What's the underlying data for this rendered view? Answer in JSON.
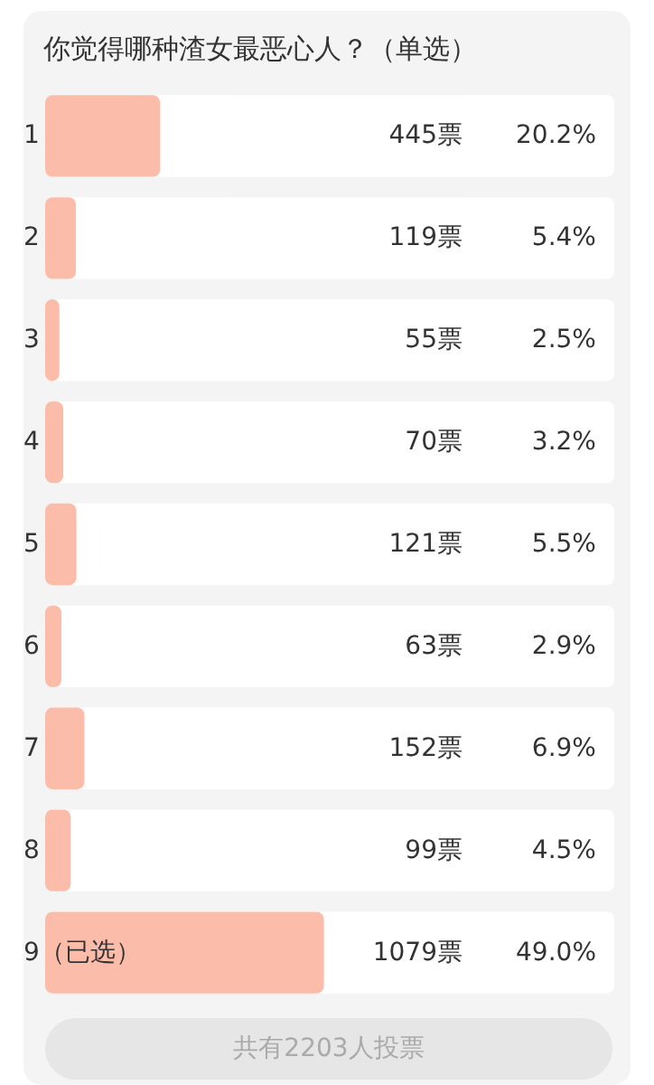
{
  "chart_data": {
    "type": "bar",
    "orientation": "horizontal",
    "title": "你觉得哪种渣女最恶心人？（单选）",
    "categories": [
      "1",
      "2",
      "3",
      "4",
      "5",
      "6",
      "7",
      "8",
      "9（已选）"
    ],
    "values": [
      445,
      119,
      55,
      70,
      121,
      63,
      152,
      99,
      1079
    ],
    "value_labels": [
      "445票",
      "119票",
      "55票",
      "70票",
      "121票",
      "63票",
      "152票",
      "99票",
      "1079票"
    ],
    "color": "#fbbcaa",
    "xlim": [
      0,
      2203
    ],
    "tick_labels": "y",
    "annotations": [
      "20.2%",
      "5.4%",
      "2.5%",
      "3.2%",
      "5.5%",
      "2.9%",
      "6.9%",
      "4.5%",
      "49.0%",
      "共有2203人投票"
    ]
  }
}
